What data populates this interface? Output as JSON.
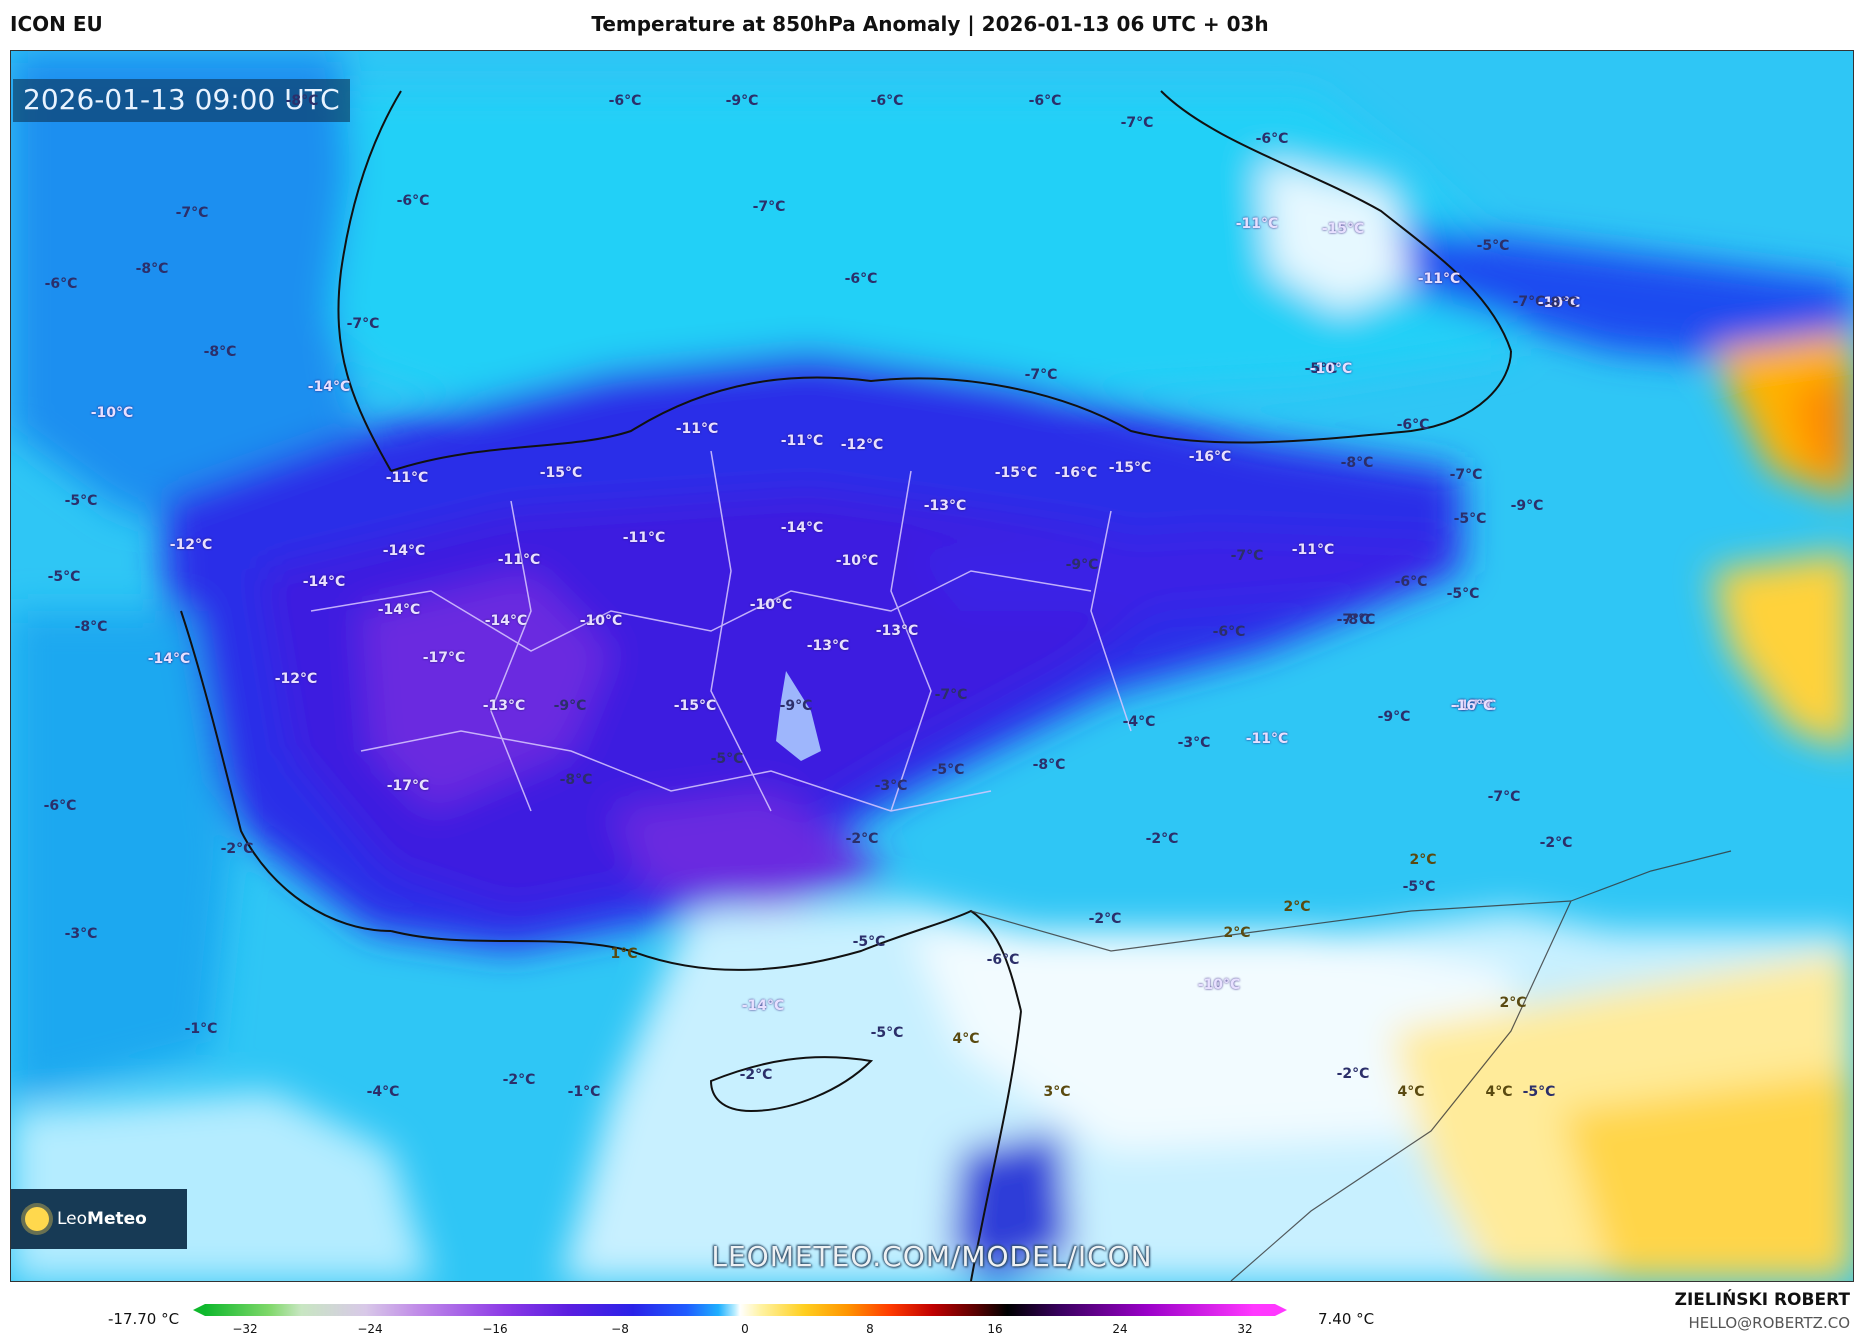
{
  "header": {
    "model_name": "ICON EU",
    "title": "Temperature at 850hPa Anomaly | 2026-01-13 06 UTC + 03h"
  },
  "map": {
    "timestamp": "2026-01-13 09:00 UTC",
    "watermark": "LEOMETEO.COM/MODEL/ICON",
    "logo_text_plain": "Leo",
    "logo_text_bold": "Meteo",
    "logo_icon": "sun-icon",
    "temperature_labels": [
      "-6°C",
      "-9°C",
      "-6°C",
      "-6°C",
      "-7°C",
      "-6°C",
      "-8°C",
      "-6°C",
      "-7°C",
      "-6°C",
      "-11°C",
      "-15°C",
      "-5°C",
      "-8°C",
      "-7°C",
      "-6°C",
      "-11°C",
      "-7°C",
      "-10°C",
      "-8°C",
      "-7°C",
      "-5°C",
      "-10°C",
      "-7°C",
      "-8°C",
      "-14°C",
      "-10°C",
      "-11°C",
      "-11°C",
      "-12°C",
      "-15°C",
      "-15°C",
      "-16°C",
      "-15°C",
      "-16°C",
      "-6°C",
      "-8°C",
      "-7°C",
      "-13°C",
      "-9°C",
      "-5°C",
      "-5°C",
      "-12°C",
      "-14°C",
      "-11°C",
      "-11°C",
      "-11°C",
      "-14°C",
      "-10°C",
      "-9°C",
      "-7°C",
      "-11°C",
      "-6°C",
      "-5°C",
      "-8°C",
      "-14°C",
      "-14°C",
      "-14°C",
      "-10°C",
      "-10°C",
      "-13°C",
      "-13°C",
      "-6°C",
      "-7°C",
      "-5°C",
      "-8°C",
      "-14°C",
      "-12°C",
      "-17°C",
      "-13°C",
      "-9°C",
      "-15°C",
      "-9°C",
      "-7°C",
      "-4°C",
      "-3°C",
      "-11°C",
      "-9°C",
      "-17°C",
      "-16°C",
      "-17°C",
      "-8°C",
      "-5°C",
      "-3°C",
      "-5°C",
      "-8°C",
      "-7°C",
      "-6°C",
      "-2°C",
      "-2°C",
      "-2°C",
      "-2°C",
      "-2°C",
      "2°C",
      "2°C",
      "2°C",
      "-5°C",
      "-5°C",
      "-6°C",
      "1°C",
      "-10°C",
      "-3°C",
      "-1°C",
      "-14°C",
      "-5°C",
      "4°C",
      "2°C",
      "-2°C",
      "-2°C",
      "-2°C",
      "-1°C",
      "-4°C",
      "3°C",
      "4°C",
      "4°C",
      "-5°C"
    ]
  },
  "colorbar": {
    "min_label": "-17.70 °C",
    "max_label": "7.40 °C",
    "ticks": [
      "−32",
      "−24",
      "−16",
      "−8",
      "0",
      "8",
      "16",
      "24",
      "32"
    ]
  },
  "footer": {
    "author": "ZIELIŃSKI ROBERT",
    "email": "HELLO@ROBERTZ.CO"
  }
}
